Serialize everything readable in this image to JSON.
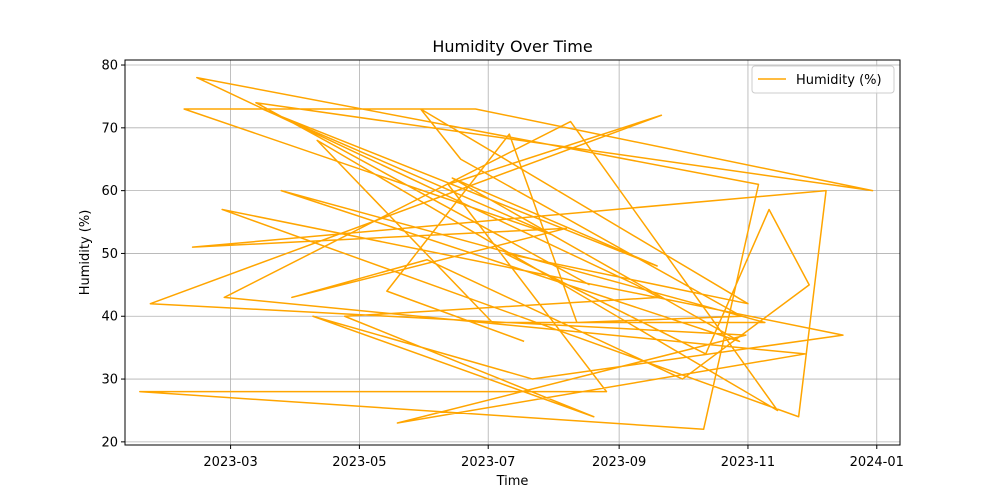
{
  "chart_data": {
    "type": "line",
    "title": "Humidity Over Time",
    "xlabel": "Time",
    "ylabel": "Humidity (%)",
    "x_axis_type": "date",
    "xlim": [
      "2023-01-10",
      "2024-01-12"
    ],
    "ylim": [
      19.5,
      80.8
    ],
    "x_ticks": [
      "2023-03-01",
      "2023-05-01",
      "2023-07-01",
      "2023-09-01",
      "2023-11-01",
      "2024-01-01"
    ],
    "x_tick_labels": [
      "2023-03",
      "2023-05",
      "2023-07",
      "2023-09",
      "2023-11",
      "2024-01"
    ],
    "y_ticks": [
      20,
      30,
      40,
      50,
      60,
      70,
      80
    ],
    "y_tick_labels": [
      "20",
      "30",
      "40",
      "50",
      "60",
      "70",
      "80"
    ],
    "grid": true,
    "legend_position": "top-right",
    "color": "#FFA500",
    "series": [
      {
        "name": "Humidity (%)",
        "x": [
          "2023-08-18",
          "2023-03-13",
          "2023-12-30",
          "2023-06-25",
          "2023-02-07",
          "2023-07-31",
          "2023-03-16",
          "2023-09-19",
          "2023-06-14",
          "2023-10-28",
          "2023-03-25",
          "2023-11-09",
          "2023-07-03",
          "2023-04-11",
          "2023-11-15",
          "2023-08-09",
          "2023-02-26",
          "2023-11-28",
          "2023-05-19",
          "2023-10-31",
          "2023-01-22",
          "2023-09-21",
          "2023-06-12",
          "2023-08-26",
          "2023-01-17",
          "2023-10-11",
          "2023-11-06",
          "2023-02-13",
          "2023-09-09",
          "2023-09-20",
          "2023-04-24",
          "2023-08-20",
          "2023-04-09",
          "2023-07-22",
          "2023-12-16",
          "2023-02-25",
          "2023-11-25",
          "2023-12-08",
          "2023-02-11",
          "2023-08-07",
          "2023-03-30",
          "2023-06-02",
          "2023-10-01",
          "2023-11-30",
          "2023-11-11",
          "2023-10-12",
          "2023-07-09",
          "2023-11-01",
          "2023-05-30",
          "2023-06-18",
          "2023-10-29",
          "2023-08-12",
          "2023-07-11",
          "2023-05-14",
          "2023-07-18"
        ],
        "values": [
          45,
          74,
          60,
          73,
          73,
          53,
          73,
          48,
          62,
          36,
          60,
          39,
          39,
          68,
          25,
          71,
          43,
          34,
          23,
          37,
          42,
          72,
          61,
          28,
          28,
          22,
          61,
          78,
          45,
          43,
          40,
          24,
          40,
          30,
          37,
          57,
          24,
          60,
          51,
          54,
          43,
          49,
          30,
          45,
          57,
          34,
          50,
          42,
          73,
          65,
          40,
          39,
          69,
          44,
          36
        ]
      }
    ]
  }
}
